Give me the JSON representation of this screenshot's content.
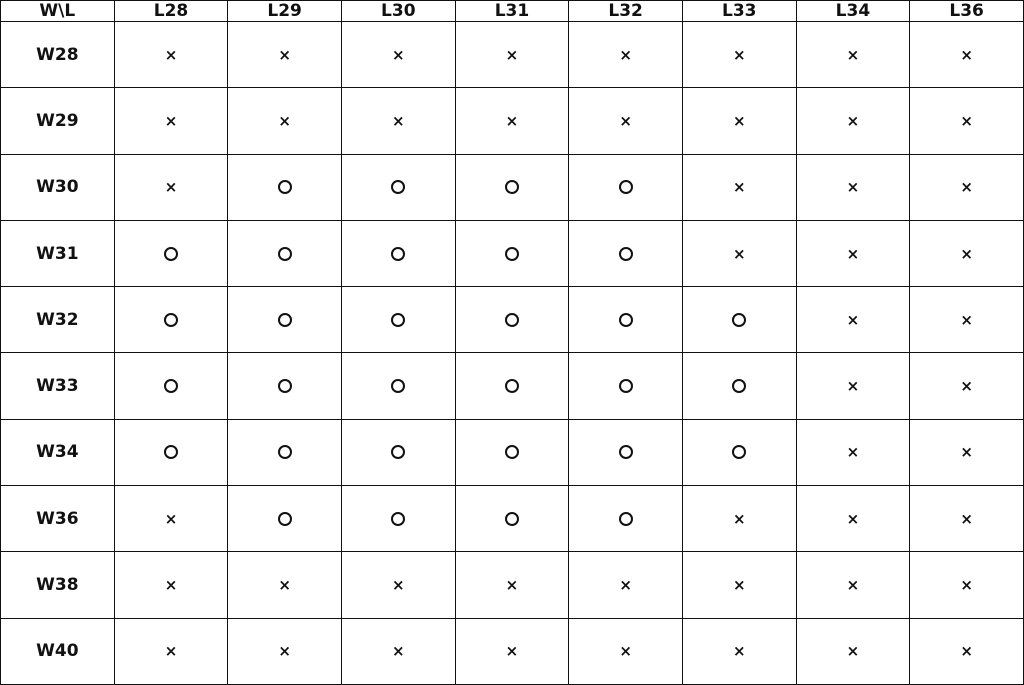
{
  "corner": "W\\L",
  "columns": [
    "L28",
    "L29",
    "L30",
    "L31",
    "L32",
    "L33",
    "L34",
    "L36"
  ],
  "rows": [
    {
      "label": "W28",
      "cells": [
        "×",
        "×",
        "×",
        "×",
        "×",
        "×",
        "×",
        "×"
      ]
    },
    {
      "label": "W29",
      "cells": [
        "×",
        "×",
        "×",
        "×",
        "×",
        "×",
        "×",
        "×"
      ]
    },
    {
      "label": "W30",
      "cells": [
        "×",
        "○",
        "○",
        "○",
        "○",
        "×",
        "×",
        "×"
      ]
    },
    {
      "label": "W31",
      "cells": [
        "○",
        "○",
        "○",
        "○",
        "○",
        "×",
        "×",
        "×"
      ]
    },
    {
      "label": "W32",
      "cells": [
        "○",
        "○",
        "○",
        "○",
        "○",
        "○",
        "×",
        "×"
      ]
    },
    {
      "label": "W33",
      "cells": [
        "○",
        "○",
        "○",
        "○",
        "○",
        "○",
        "×",
        "×"
      ]
    },
    {
      "label": "W34",
      "cells": [
        "○",
        "○",
        "○",
        "○",
        "○",
        "○",
        "×",
        "×"
      ]
    },
    {
      "label": "W36",
      "cells": [
        "×",
        "○",
        "○",
        "○",
        "○",
        "×",
        "×",
        "×"
      ]
    },
    {
      "label": "W38",
      "cells": [
        "×",
        "×",
        "×",
        "×",
        "×",
        "×",
        "×",
        "×"
      ]
    },
    {
      "label": "W40",
      "cells": [
        "×",
        "×",
        "×",
        "×",
        "×",
        "×",
        "×",
        "×"
      ]
    }
  ]
}
